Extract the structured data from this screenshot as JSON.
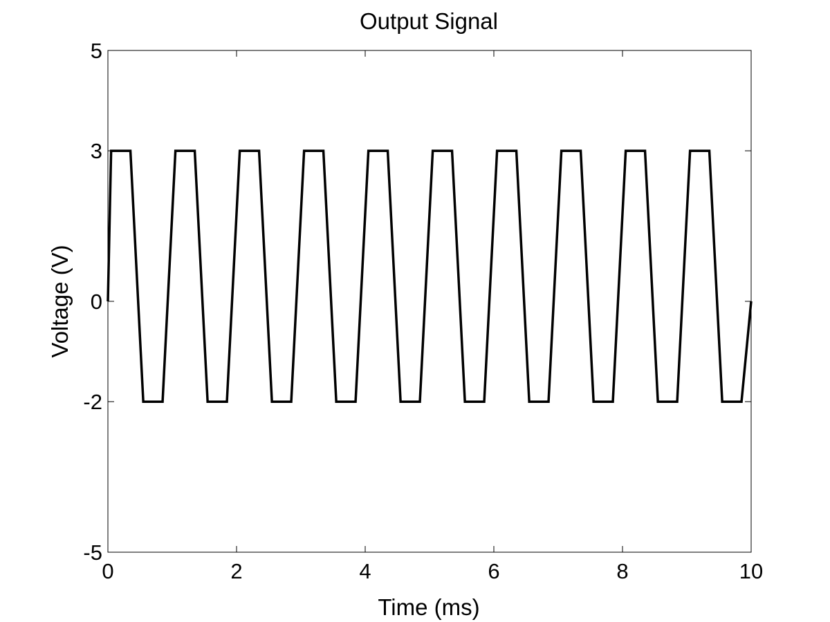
{
  "chart_data": {
    "type": "line",
    "title": "Output Signal",
    "xlabel": "Time (ms)",
    "ylabel": "Voltage (V)",
    "xlim": [
      0,
      10
    ],
    "ylim": [
      -5,
      5
    ],
    "xticks": [
      0,
      2,
      4,
      6,
      8,
      10
    ],
    "xtick_labels": [
      "0",
      "2",
      "4",
      "6",
      "8",
      "10"
    ],
    "yticks": [
      -5,
      -2,
      0,
      3,
      5
    ],
    "ytick_labels": [
      "-5",
      "-2",
      "0",
      "3",
      "5"
    ],
    "grid": false,
    "legend": "none",
    "series": [
      {
        "color": "#000000",
        "x": [
          0,
          0.05,
          0.35,
          0.55,
          0.85,
          1.05,
          1.35,
          1.55,
          1.85,
          2.05,
          2.35,
          2.55,
          2.85,
          3.05,
          3.35,
          3.55,
          3.85,
          4.05,
          4.35,
          4.55,
          4.85,
          5.05,
          5.35,
          5.55,
          5.85,
          6.05,
          6.35,
          6.55,
          6.85,
          7.05,
          7.35,
          7.55,
          7.85,
          8.05,
          8.35,
          8.55,
          8.85,
          9.05,
          9.35,
          9.55,
          9.85,
          10.0
        ],
        "y": [
          0,
          3,
          3,
          -2,
          -2,
          3,
          3,
          -2,
          -2,
          3,
          3,
          -2,
          -2,
          3,
          3,
          -2,
          -2,
          3,
          3,
          -2,
          -2,
          3,
          3,
          -2,
          -2,
          3,
          3,
          -2,
          -2,
          3,
          3,
          -2,
          -2,
          3,
          3,
          -2,
          -2,
          3,
          3,
          -2,
          -2,
          0
        ]
      }
    ]
  }
}
